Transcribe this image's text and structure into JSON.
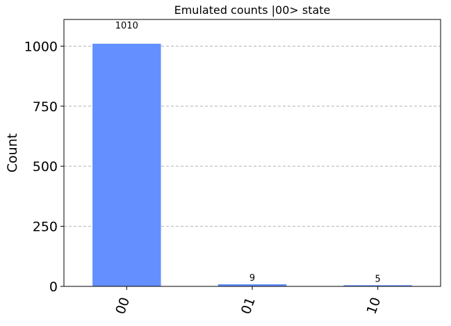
{
  "chart_data": {
    "type": "bar",
    "title": "Emulated counts |00> state",
    "xlabel": "",
    "ylabel": "Count",
    "categories": [
      "00",
      "01",
      "10"
    ],
    "values": [
      1010,
      9,
      5
    ],
    "data_labels": [
      "1010",
      "9",
      "5"
    ],
    "yticks": [
      0,
      250,
      500,
      750,
      1000
    ],
    "ylim": [
      0,
      1111
    ],
    "grid": "horizontal dashed",
    "bar_color": "#648fff"
  }
}
